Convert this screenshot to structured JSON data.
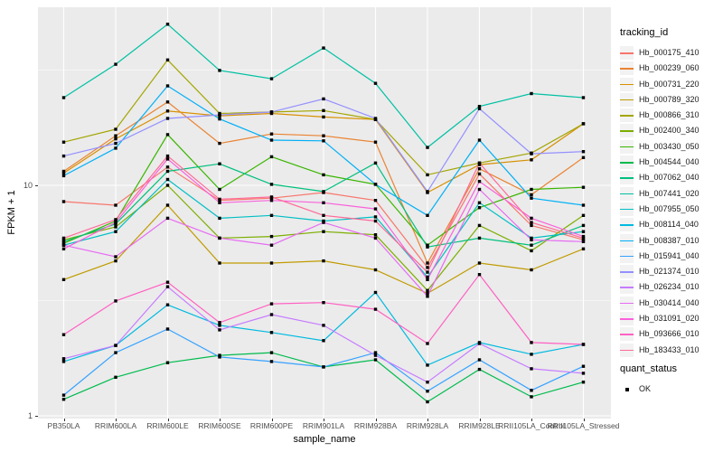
{
  "figure": {
    "background": "#FFFFFF",
    "panel_background": "#EBEBEB",
    "grid_color": "#FFFFFF",
    "tick_text_color": "#4D4D4D",
    "marker_color": "#000000"
  },
  "chart_data": {
    "type": "line",
    "title": "",
    "xlabel": "sample_name",
    "ylabel": "FPKM + 1",
    "y_scale": "log10",
    "ylim": [
      0.97,
      59
    ],
    "grid": true,
    "legend_position": "right",
    "legend_title": "tracking_id",
    "y_ticks": [
      {
        "label": "1",
        "value": 1
      },
      {
        "label": "10",
        "value": 10
      }
    ],
    "y_minor_ticks": [
      3.1623,
      31.623
    ],
    "categories": [
      "PB350LA",
      "RRIM600LA",
      "RRIM600LE",
      "RRIM600SE",
      "RRIM600PE",
      "RRIM901LA",
      "RRIM928BA",
      "RRIM928LA",
      "RRIM928LE",
      "RRII105LA_Control",
      "RRII105LA_Stressed"
    ],
    "marker": {
      "shape": "square",
      "color": "#000000"
    },
    "series": [
      {
        "name": "Hb_000175_410",
        "color": "#F8766D",
        "values": [
          8.5,
          8.2,
          12.0,
          8.6,
          8.8,
          9.3,
          8.6,
          4.4,
          11.2,
          6.7,
          5.8
        ]
      },
      {
        "name": "Hb_000239_060",
        "color": "#EA8331",
        "values": [
          11.5,
          16.4,
          23.0,
          15.2,
          16.7,
          16.4,
          15.4,
          4.6,
          11.8,
          9.1,
          13.2
        ]
      },
      {
        "name": "Hb_000731_220",
        "color": "#D89000",
        "values": [
          11.3,
          15.9,
          21.0,
          20.0,
          20.5,
          19.8,
          19.3,
          9.3,
          12.3,
          12.9,
          18.5
        ]
      },
      {
        "name": "Hb_000789_320",
        "color": "#C09B00",
        "values": [
          3.9,
          4.7,
          8.2,
          4.6,
          4.6,
          4.7,
          4.3,
          3.4,
          4.6,
          4.3,
          5.3
        ]
      },
      {
        "name": "Hb_000866_310",
        "color": "#A3A500",
        "values": [
          15.4,
          17.5,
          35.0,
          20.5,
          20.8,
          21.1,
          19.3,
          11.1,
          12.5,
          13.8,
          18.5
        ]
      },
      {
        "name": "Hb_002400_340",
        "color": "#7CAE00",
        "values": [
          5.8,
          6.6,
          10.0,
          5.9,
          6.0,
          6.3,
          6.1,
          3.5,
          6.7,
          5.2,
          7.4
        ]
      },
      {
        "name": "Hb_003430_050",
        "color": "#39B600",
        "values": [
          5.6,
          7.0,
          16.6,
          9.6,
          13.3,
          11.1,
          10.1,
          5.5,
          8.0,
          9.6,
          9.8
        ]
      },
      {
        "name": "Hb_004544_040",
        "color": "#00BB4E",
        "values": [
          1.18,
          1.47,
          1.7,
          1.83,
          1.88,
          1.63,
          1.75,
          1.15,
          1.59,
          1.21,
          1.4
        ]
      },
      {
        "name": "Hb_007062_040",
        "color": "#00C07D",
        "values": [
          5.7,
          6.8,
          11.5,
          12.4,
          10.1,
          9.4,
          12.5,
          5.4,
          5.9,
          5.5,
          6.7
        ]
      },
      {
        "name": "Hb_007441_020",
        "color": "#00C1A3",
        "values": [
          24.0,
          33.5,
          50.0,
          31.5,
          29.0,
          39.4,
          27.7,
          14.6,
          22.0,
          25.0,
          24.0
        ]
      },
      {
        "name": "Hb_007955_050",
        "color": "#00BFC4",
        "values": [
          5.5,
          6.3,
          10.6,
          7.2,
          7.4,
          7.0,
          7.3,
          4.0,
          8.4,
          5.9,
          6.3
        ]
      },
      {
        "name": "Hb_008114_040",
        "color": "#00BAE0",
        "values": [
          1.72,
          2.02,
          3.03,
          2.47,
          2.3,
          2.12,
          3.43,
          1.66,
          2.08,
          1.85,
          2.04
        ]
      },
      {
        "name": "Hb_008387_010",
        "color": "#00B0F6",
        "values": [
          11.0,
          14.5,
          27.0,
          19.4,
          15.7,
          15.6,
          10.1,
          7.4,
          15.7,
          8.8,
          8.2
        ]
      },
      {
        "name": "Hb_015941_040",
        "color": "#35A2FF",
        "values": [
          1.23,
          1.88,
          2.38,
          1.8,
          1.72,
          1.63,
          1.88,
          1.28,
          1.75,
          1.29,
          1.64
        ]
      },
      {
        "name": "Hb_021374_010",
        "color": "#9590FF",
        "values": [
          13.4,
          15.2,
          19.5,
          20.2,
          20.8,
          23.7,
          19.5,
          9.4,
          21.5,
          13.7,
          14.0
        ]
      },
      {
        "name": "Hb_026234_010",
        "color": "#C77CFF",
        "values": [
          1.77,
          2.02,
          3.63,
          2.36,
          2.75,
          2.47,
          1.83,
          1.4,
          2.06,
          1.6,
          1.53
        ]
      },
      {
        "name": "Hb_030414_040",
        "color": "#E76BF3",
        "values": [
          5.5,
          4.9,
          7.2,
          5.9,
          5.5,
          6.9,
          5.9,
          3.3,
          9.6,
          5.8,
          5.7
        ]
      },
      {
        "name": "Hb_031091_020",
        "color": "#FA62DB",
        "values": [
          5.3,
          6.9,
          13.0,
          8.4,
          8.6,
          8.4,
          7.9,
          3.9,
          10.4,
          7.2,
          6.0
        ]
      },
      {
        "name": "Hb_093666_010",
        "color": "#FF61C3",
        "values": [
          2.25,
          3.15,
          3.8,
          2.54,
          3.06,
          3.1,
          2.9,
          2.06,
          4.1,
          2.08,
          2.04
        ]
      },
      {
        "name": "Hb_183433_010",
        "color": "#FF6A98",
        "values": [
          5.9,
          7.1,
          13.4,
          8.7,
          8.9,
          7.4,
          7.0,
          4.2,
          12.5,
          6.9,
          5.9
        ]
      }
    ],
    "quant_legend": {
      "title": "quant_status",
      "items": [
        {
          "label": "OK",
          "marker": "black-square"
        }
      ]
    }
  }
}
